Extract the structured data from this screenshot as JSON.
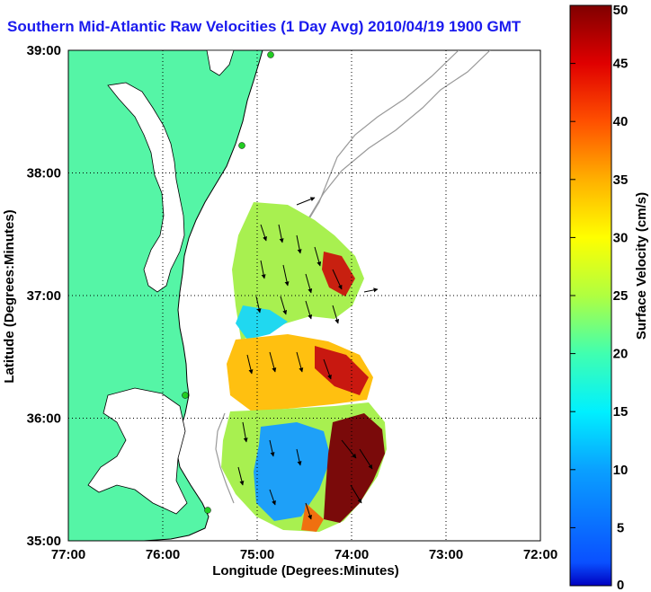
{
  "title": "Southern Mid-Atlantic Raw Velocities (1 Day Avg) 2010/04/19 1900 GMT",
  "chart_data": {
    "type": "heatmap",
    "title": "Southern Mid-Atlantic Raw Velocities (1 Day Avg) 2010/04/19 1900 GMT",
    "xlabel": "Longitude (Degrees:Minutes)",
    "ylabel": "Latitude (Degrees:Minutes)",
    "colorbar_label": "Surface Velocity (cm/s)",
    "x_ticks": [
      "77:00",
      "76:00",
      "75:00",
      "74:00",
      "73:00",
      "72:00"
    ],
    "x_tick_values": [
      -77,
      -76,
      -75,
      -74,
      -73,
      -72
    ],
    "y_ticks": [
      "39:00",
      "38:00",
      "37:00",
      "36:00",
      "35:00"
    ],
    "y_tick_values": [
      39,
      38,
      37,
      36,
      35
    ],
    "xlim": [
      -77,
      -72
    ],
    "ylim": [
      35,
      39
    ],
    "colorbar_ticks": [
      "0",
      "5",
      "10",
      "15",
      "20",
      "25",
      "30",
      "35",
      "40",
      "45",
      "50"
    ],
    "colorbar_range": [
      0,
      50
    ],
    "grid": true,
    "colors": {
      "land": "#55f5a6",
      "coast": "#000000",
      "bathymetry": "#999999",
      "station": "#22cc22",
      "title": "#1a1aee"
    },
    "speed_regions": [
      {
        "region": "northern lobe core",
        "lon": -74.9,
        "lat": 37.4,
        "speed": 24
      },
      {
        "region": "northern lobe northeast edge",
        "lon": -74.2,
        "lat": 37.1,
        "speed": 42
      },
      {
        "region": "northern lobe southwest",
        "lon": -75.1,
        "lat": 36.7,
        "speed": 12
      },
      {
        "region": "central band",
        "lon": -74.6,
        "lat": 36.4,
        "speed": 33
      },
      {
        "region": "central band east",
        "lon": -74.2,
        "lat": 36.3,
        "speed": 48
      },
      {
        "region": "southern west flank",
        "lon": -75.3,
        "lat": 35.9,
        "speed": 26
      },
      {
        "region": "southern slow core",
        "lon": -74.8,
        "lat": 35.5,
        "speed": 8
      },
      {
        "region": "southern fast jet",
        "lon": -74.0,
        "lat": 35.6,
        "speed": 50
      },
      {
        "region": "southern tip",
        "lon": -74.4,
        "lat": 35.15,
        "speed": 38
      }
    ]
  }
}
